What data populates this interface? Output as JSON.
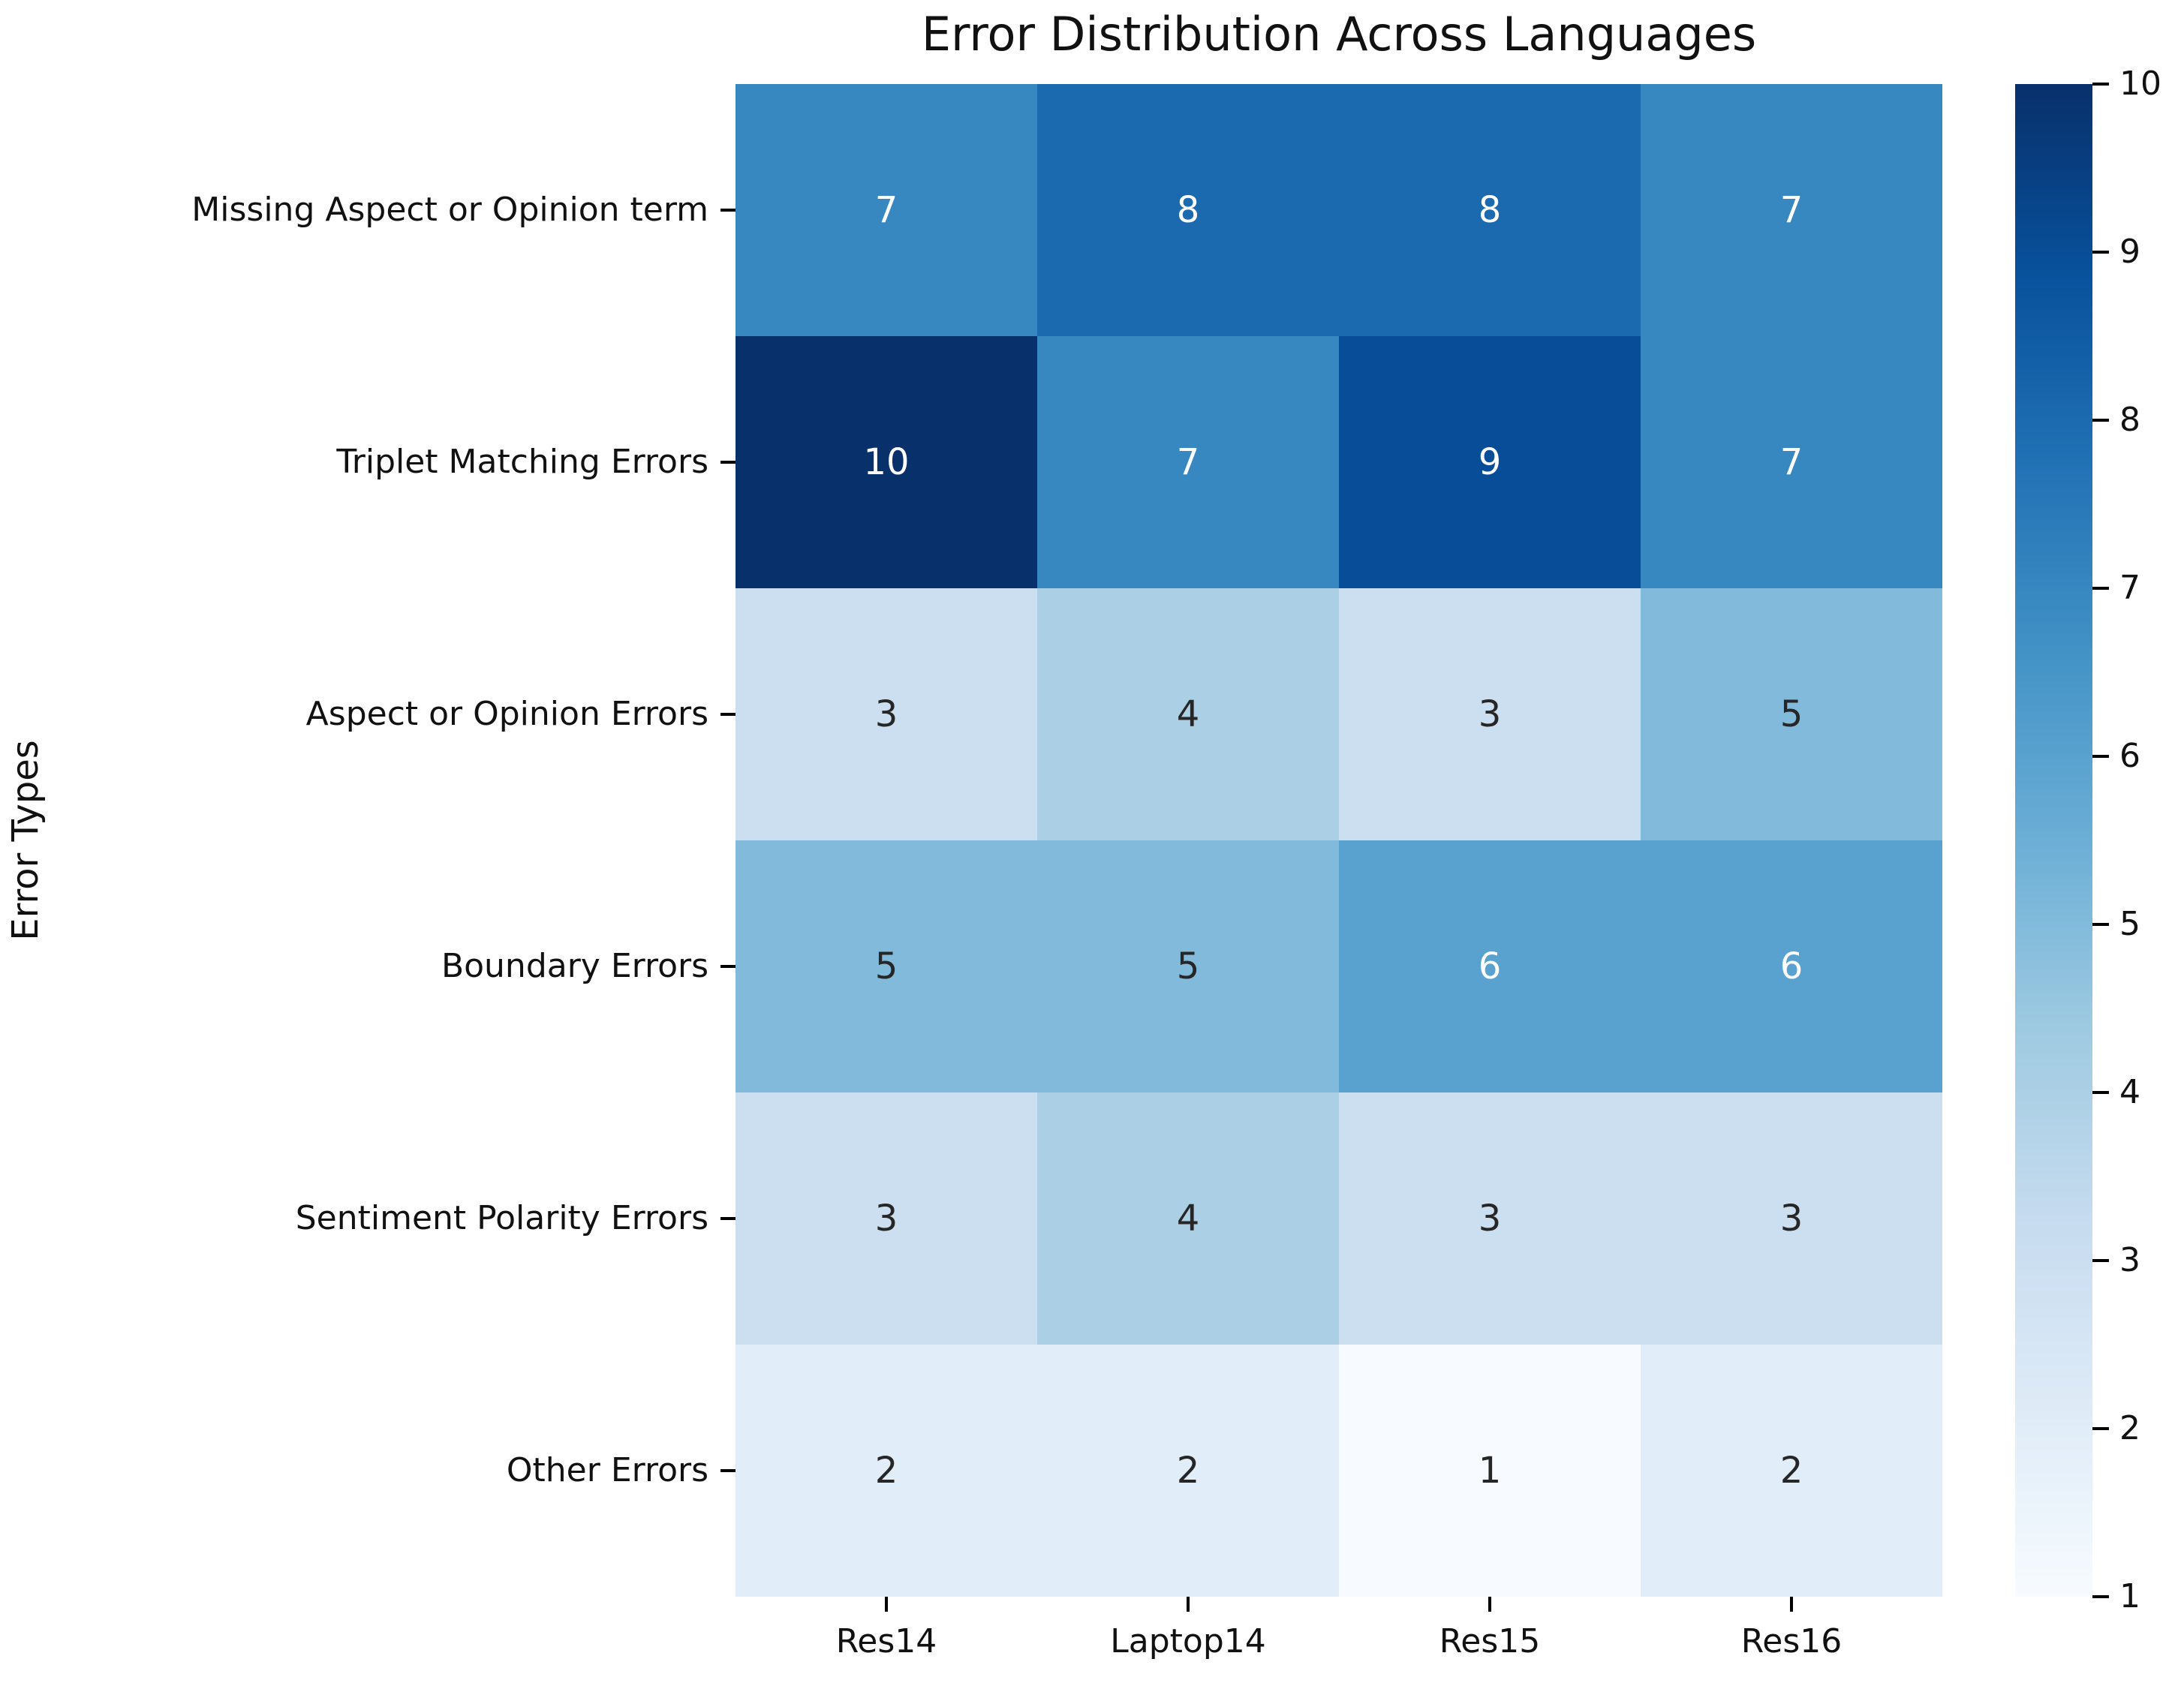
{
  "chart_data": {
    "type": "heatmap",
    "title": "Error Distribution Across Languages",
    "xlabel": "",
    "ylabel": "Error Types",
    "columns": [
      "Res14",
      "Laptop14",
      "Res15",
      "Res16"
    ],
    "rows": [
      "Missing Aspect or Opinion term",
      "Triplet Matching Errors",
      "Aspect or Opinion Errors",
      "Boundary Errors",
      "Sentiment Polarity Errors",
      "Other Errors"
    ],
    "values": [
      [
        7,
        8,
        8,
        7
      ],
      [
        10,
        7,
        9,
        7
      ],
      [
        3,
        4,
        3,
        5
      ],
      [
        5,
        5,
        6,
        6
      ],
      [
        3,
        4,
        3,
        3
      ],
      [
        2,
        2,
        1,
        2
      ]
    ],
    "colormap": "Blues",
    "vmin": 1,
    "vmax": 10,
    "colorbar_ticks": [
      1,
      2,
      3,
      4,
      5,
      6,
      7,
      8,
      9,
      10
    ],
    "colormap_stops": [
      "#f7fbff",
      "#deebf7",
      "#c6dbef",
      "#9ecae1",
      "#6baed6",
      "#4292c6",
      "#2171b5",
      "#08519c",
      "#08306b"
    ],
    "annotation_dark_color": "#262626",
    "annotation_light_color": "#ffffff",
    "legend_position": "right-colorbar",
    "grid": "off"
  }
}
